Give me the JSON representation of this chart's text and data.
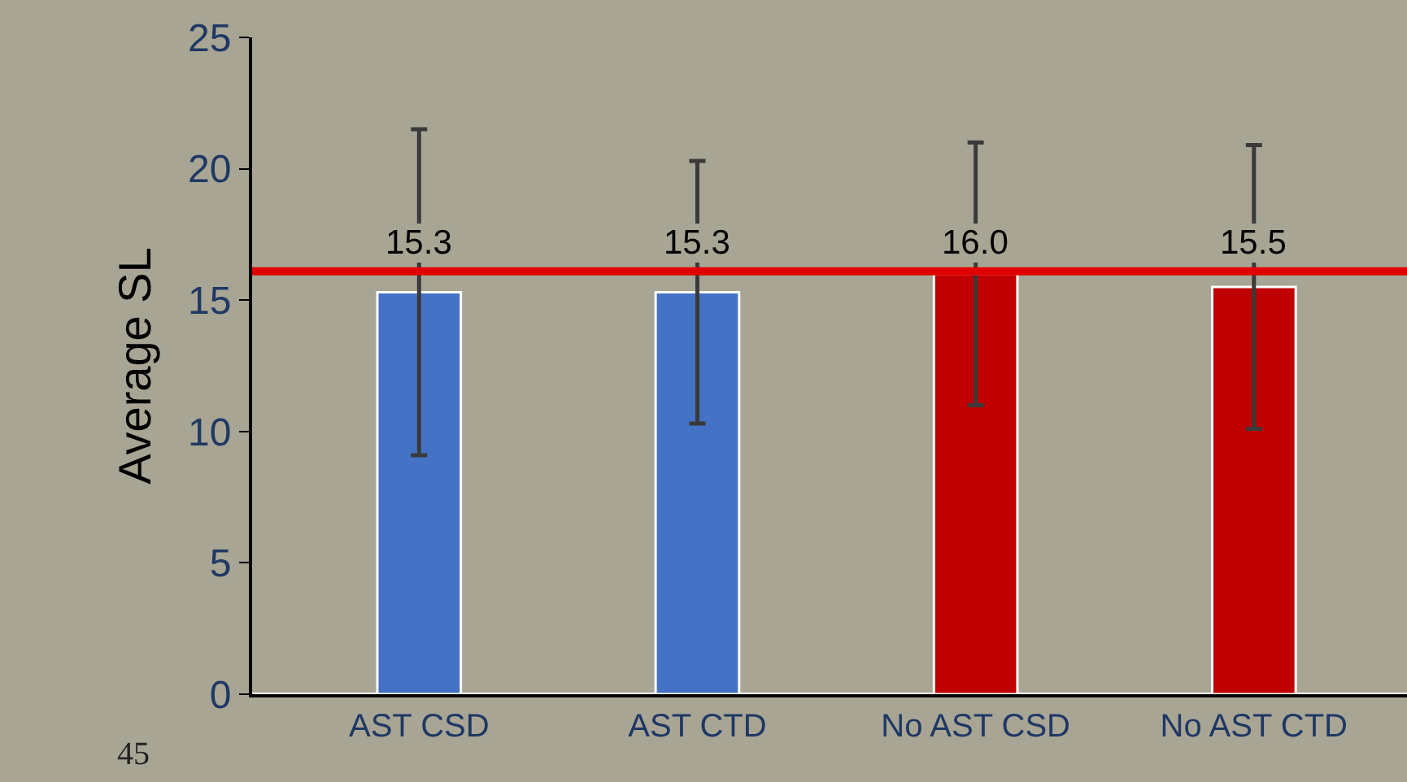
{
  "chart_data": {
    "type": "bar",
    "ylabel": "Average SL",
    "categories": [
      "AST CSD",
      "AST CTD",
      "No AST CSD",
      "No AST CTD"
    ],
    "values": [
      15.3,
      15.3,
      16.0,
      15.5
    ],
    "colors": [
      "#4472c4",
      "#4472c4",
      "#c00000",
      "#c00000"
    ],
    "errors": [
      [
        9.1,
        21.5
      ],
      [
        10.3,
        20.3
      ],
      [
        11.0,
        21.0
      ],
      [
        10.1,
        20.9
      ]
    ],
    "value_labels": [
      "15.3",
      "15.3",
      "16.0",
      "15.5"
    ],
    "ylim": [
      0,
      25
    ],
    "yticks": [
      0,
      5,
      10,
      15,
      20,
      25
    ],
    "grid": false,
    "ref_lines": [
      {
        "axis": "y",
        "value": 16.1,
        "color": "#e00000"
      }
    ],
    "annotations": [
      "45"
    ]
  }
}
